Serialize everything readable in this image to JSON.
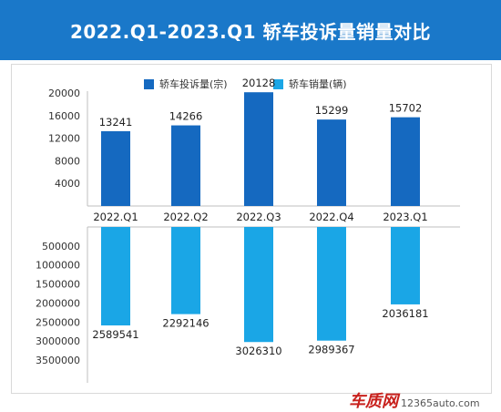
{
  "header": {
    "title": "2022.Q1-2023.Q1 轿车投诉量销量对比"
  },
  "colors": {
    "header_bg": "#1a78c9",
    "complaints": "#1569c0",
    "sales": "#1aa6e6"
  },
  "watermark": {
    "logo_text": "车质网",
    "url": "12365auto.com"
  },
  "chart_data": {
    "type": "bar",
    "categories": [
      "2022.Q1",
      "2022.Q2",
      "2022.Q3",
      "2022.Q4",
      "2023.Q1"
    ],
    "series": [
      {
        "name": "轿车投诉量(宗)",
        "values": [
          13241,
          14266,
          20128,
          15299,
          15702
        ],
        "yticks": [
          "20000",
          "16000",
          "12000",
          "8000",
          "4000"
        ],
        "ylim": [
          0,
          20000
        ],
        "direction": "up"
      },
      {
        "name": "轿车销量(辆)",
        "values": [
          2589541,
          2292146,
          3026310,
          2989367,
          2036181
        ],
        "yticks": [
          "500000",
          "1000000",
          "1500000",
          "2000000",
          "2500000",
          "3000000",
          "3500000"
        ],
        "ylim": [
          0,
          3500000
        ],
        "direction": "down"
      }
    ],
    "title": "",
    "xlabel": "",
    "ylabel": "",
    "legend_position": "top-center",
    "grid": false
  }
}
